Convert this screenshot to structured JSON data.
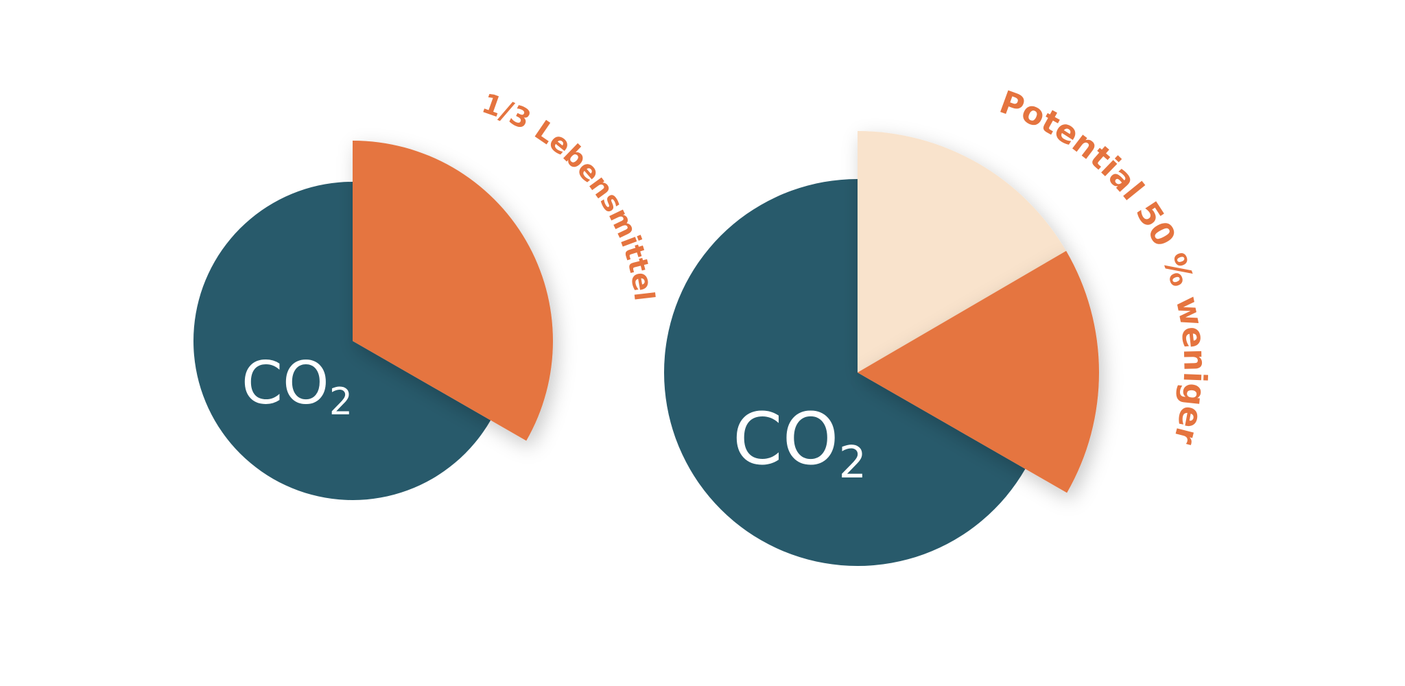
{
  "colors": {
    "base": "#285a6b",
    "accent": "#e5743f",
    "light": "#f9e3cc",
    "text_on_base": "#ffffff"
  },
  "chart_data": [
    {
      "type": "pie",
      "center_label": {
        "main": "CO",
        "sub": "2"
      },
      "arc_label": "1/3 Lebensmittel",
      "slices": [
        {
          "label": "",
          "value": 66.7,
          "color": "#285a6b",
          "exploded": false
        },
        {
          "label": "1/3 Lebensmittel",
          "value": 33.3,
          "color": "#e5743f",
          "exploded": true
        }
      ]
    },
    {
      "type": "pie",
      "center_label": {
        "main": "CO",
        "sub": "2"
      },
      "arc_label": "Potential 50 % weniger",
      "slices": [
        {
          "label": "",
          "value": 66.7,
          "color": "#285a6b",
          "exploded": false
        },
        {
          "label": "",
          "value": 16.7,
          "color": "#e5743f",
          "exploded": true
        },
        {
          "label": "Potential 50 % weniger",
          "value": 16.6,
          "color": "#f9e3cc",
          "exploded": true
        }
      ]
    }
  ]
}
